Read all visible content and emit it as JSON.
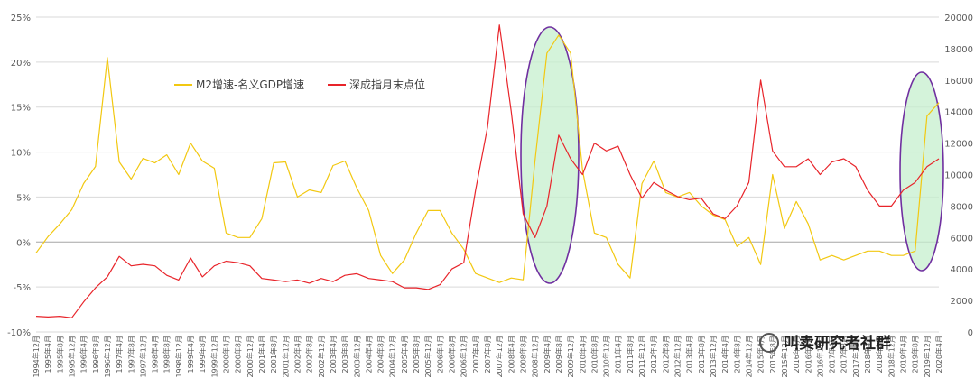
{
  "chart_data": {
    "type": "line",
    "title": "",
    "xlabel": "",
    "y_left": {
      "ticks": [
        "-10%",
        "-5%",
        "0%",
        "5%",
        "10%",
        "15%",
        "20%",
        "25%"
      ],
      "values": [
        -10,
        -5,
        0,
        5,
        10,
        15,
        20,
        25
      ],
      "ylim": [
        -10,
        25
      ]
    },
    "y_right": {
      "ticks": [
        "0",
        "2000",
        "4000",
        "6000",
        "8000",
        "10000",
        "12000",
        "14000",
        "16000",
        "18000",
        "20000"
      ],
      "values": [
        0,
        2000,
        4000,
        6000,
        8000,
        10000,
        12000,
        14000,
        16000,
        18000,
        20000
      ],
      "ylim": [
        0,
        20000
      ]
    },
    "x_tick_labels": [
      "1994年12月",
      "1995年4月",
      "1995年8月",
      "1995年12月",
      "1996年4月",
      "1996年8月",
      "1996年12月",
      "1997年4月",
      "1997年8月",
      "1997年12月",
      "1998年4月",
      "1998年8月",
      "1998年12月",
      "1999年4月",
      "1999年8月",
      "1999年12月",
      "2000年4月",
      "2000年8月",
      "2000年12月",
      "2001年4月",
      "2001年8月",
      "2001年12月",
      "2002年4月",
      "2002年8月",
      "2002年12月",
      "2003年4月",
      "2003年8月",
      "2003年12月",
      "2004年4月",
      "2004年8月",
      "2004年12月",
      "2005年4月",
      "2005年8月",
      "2005年12月",
      "2006年4月",
      "2006年8月",
      "2006年12月",
      "2007年4月",
      "2007年8月",
      "2007年12月",
      "2008年4月",
      "2008年8月",
      "2008年12月",
      "2009年4月",
      "2009年8月",
      "2009年12月",
      "2010年4月",
      "2010年8月",
      "2010年12月",
      "2011年4月",
      "2011年8月",
      "2011年12月",
      "2012年4月",
      "2012年8月",
      "2012年12月",
      "2013年4月",
      "2013年8月",
      "2013年12月",
      "2014年4月",
      "2014年8月",
      "2014年12月",
      "2015年4月",
      "2015年8月",
      "2015年12月",
      "2016年4月",
      "2016年8月",
      "2016年12月",
      "2017年4月",
      "2017年8月",
      "2017年12月",
      "2018年4月",
      "2018年8月",
      "2018年12月",
      "2019年4月",
      "2019年8月",
      "2019年12月",
      "2020年4月"
    ],
    "series": [
      {
        "name": "M2增速-名义GDP增速",
        "axis": "left",
        "color": "#F2C811",
        "x_start": "1994年12月",
        "x_step_months": 4,
        "values": [
          -1.2,
          0.6,
          2.0,
          3.6,
          6.5,
          8.4,
          20.5,
          8.9,
          7.0,
          9.3,
          8.8,
          9.7,
          7.5,
          11.0,
          9.0,
          8.2,
          1.0,
          0.5,
          0.5,
          2.6,
          8.8,
          8.9,
          5.0,
          5.8,
          5.5,
          8.5,
          9.0,
          6.0,
          3.5,
          -1.5,
          -3.5,
          -2.0,
          1.0,
          3.5,
          3.5,
          1.0,
          -0.8,
          -3.5,
          -4.0,
          -4.5,
          -4.0,
          -4.2,
          9.0,
          21.0,
          23.0,
          21.0,
          8.0,
          1.0,
          0.5,
          -2.5,
          -4.0,
          6.5,
          9.0,
          5.5,
          5.0,
          5.5,
          4.0,
          3.0,
          2.5,
          -0.5,
          0.5,
          -2.5,
          7.5,
          1.5,
          4.5,
          2.0,
          -2.0,
          -1.5,
          -2.0,
          -1.5,
          -1.0,
          -1.0,
          -1.5,
          -1.5,
          -1.0,
          14.0,
          15.5
        ]
      },
      {
        "name": "深成指月末点位",
        "axis": "right",
        "color": "#E8242A",
        "x_start": "1994年12月",
        "x_step_months": 4,
        "values": [
          1000,
          950,
          1000,
          900,
          1900,
          2800,
          3500,
          4800,
          4200,
          4300,
          4200,
          3600,
          3300,
          4700,
          3500,
          4200,
          4500,
          4400,
          4200,
          3400,
          3300,
          3200,
          3300,
          3100,
          3400,
          3200,
          3600,
          3700,
          3400,
          3300,
          3200,
          2800,
          2800,
          2700,
          3000,
          4000,
          4400,
          9000,
          13000,
          19500,
          14000,
          7500,
          6000,
          8000,
          12500,
          11000,
          10000,
          12000,
          11500,
          11800,
          10000,
          8500,
          9500,
          9000,
          8600,
          8400,
          8500,
          7500,
          7200,
          8000,
          9500,
          16000,
          11500,
          10500,
          10500,
          11000,
          10000,
          10800,
          11000,
          10500,
          9000,
          8000,
          8000,
          9000,
          9500,
          10500,
          11000
        ]
      }
    ],
    "annotations": [
      "ellipse-2008-2009",
      "ellipse-2019-2020"
    ]
  },
  "watermark": {
    "text": "叫卖研究者社群"
  },
  "colors": {
    "axis": "#595959",
    "grid": "#D9D9D9",
    "ellipse_fill": "#C6EFCE",
    "ellipse_stroke": "#7030A0"
  }
}
